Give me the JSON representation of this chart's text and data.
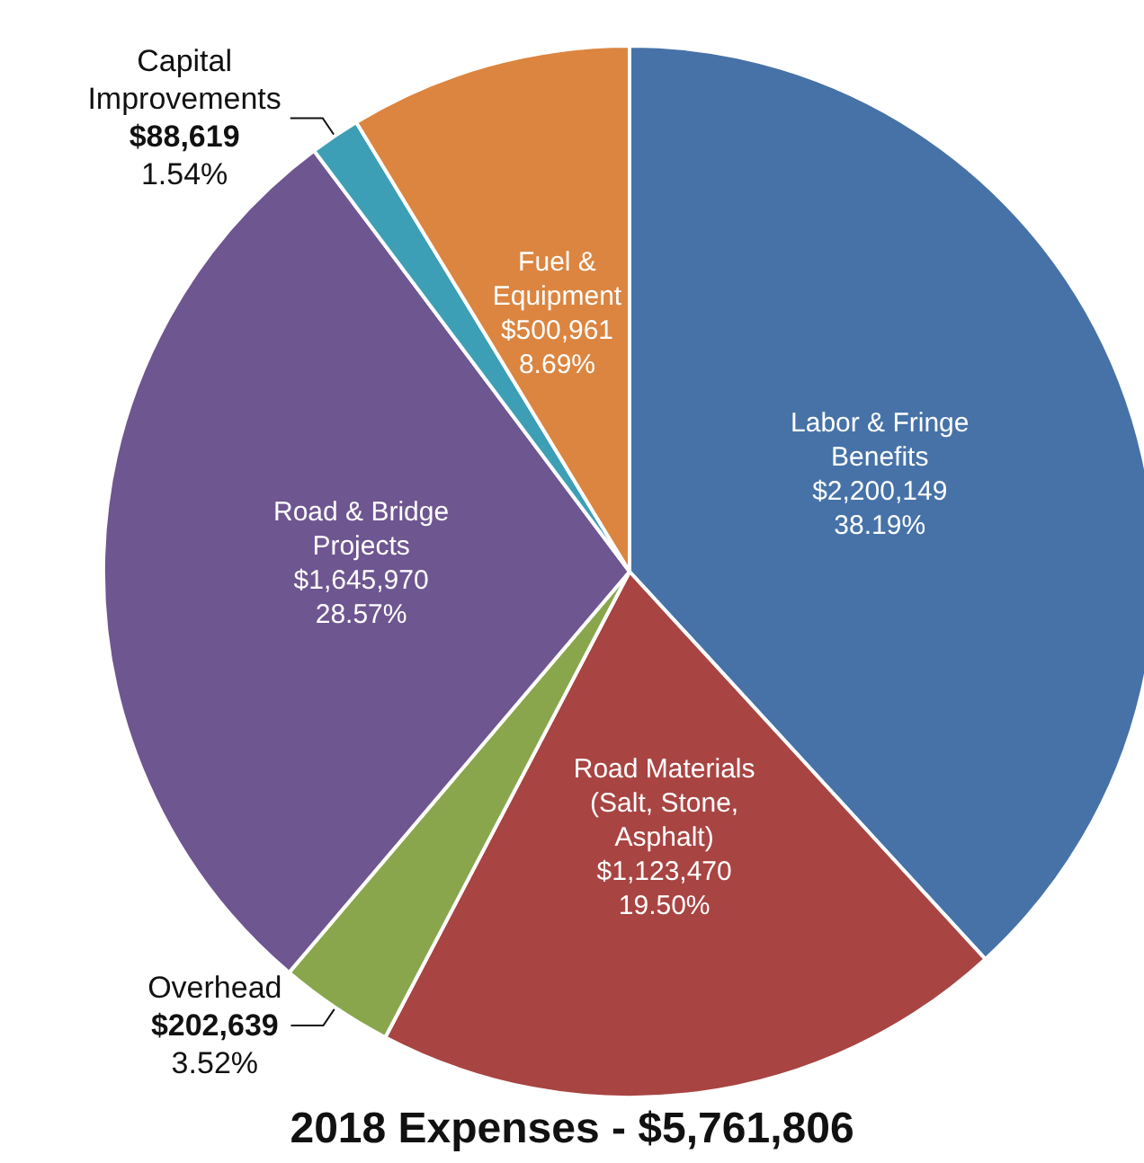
{
  "chart_data": {
    "type": "pie",
    "title": "2018 Expenses - $5,761,806",
    "categories": [
      "Labor & Fringe Benefits",
      "Road Materials (Salt, Stone, Asphalt)",
      "Overhead",
      "Road & Bridge Projects",
      "Capital Improvements",
      "Fuel & Equipment"
    ],
    "values": [
      2200149,
      1123470,
      202639,
      1645970,
      88619,
      500961
    ],
    "colors": [
      "#4672a8",
      "#a84442",
      "#8aa64c",
      "#6e5690",
      "#3d9fb5",
      "#db8540"
    ],
    "value_labels": [
      "$2,200,149\n38.19%",
      "$1,123,470\n19.50%",
      "$202,639\n3.52%",
      "$1,645,970\n28.57%",
      "$88,619\n1.54%",
      "$500,961\n8.69%"
    ],
    "legend": false
  }
}
